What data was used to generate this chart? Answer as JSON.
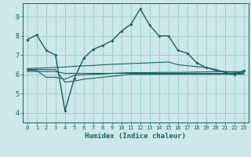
{
  "xlabel": "Humidex (Indice chaleur)",
  "xlim": [
    -0.5,
    23.5
  ],
  "ylim": [
    3.5,
    9.7
  ],
  "yticks": [
    4,
    5,
    6,
    7,
    8,
    9
  ],
  "xticks": [
    0,
    1,
    2,
    3,
    4,
    5,
    6,
    7,
    8,
    9,
    10,
    11,
    12,
    13,
    14,
    15,
    16,
    17,
    18,
    19,
    20,
    21,
    22,
    23
  ],
  "bg_color": "#cce8e8",
  "line_color": "#1a6060",
  "grid_color": "#99cccc",
  "line1_x": [
    0,
    1,
    2,
    3,
    4,
    5,
    6,
    7,
    8,
    9,
    10,
    11,
    12,
    13,
    14,
    15,
    16,
    17,
    18,
    19,
    20,
    21,
    22,
    23
  ],
  "line1_y": [
    7.8,
    8.05,
    7.25,
    7.0,
    4.1,
    5.8,
    6.85,
    7.3,
    7.5,
    7.75,
    8.25,
    8.6,
    9.4,
    8.55,
    8.0,
    8.0,
    7.25,
    7.1,
    6.6,
    6.35,
    6.25,
    6.1,
    6.0,
    6.2
  ],
  "line2_x": [
    0,
    1,
    2,
    3,
    4,
    5,
    6,
    7,
    8,
    9,
    10,
    11,
    12,
    13,
    14,
    15,
    16,
    17,
    18,
    19,
    20,
    21,
    22,
    23
  ],
  "line2_y": [
    6.3,
    6.32,
    6.34,
    6.36,
    6.38,
    6.42,
    6.44,
    6.46,
    6.5,
    6.52,
    6.54,
    6.56,
    6.58,
    6.6,
    6.62,
    6.64,
    6.5,
    6.45,
    6.4,
    6.35,
    6.2,
    6.15,
    6.1,
    6.1
  ],
  "line3_x": [
    0,
    1,
    2,
    3,
    4,
    5,
    6,
    7,
    8,
    9,
    10,
    11,
    12,
    13,
    14,
    15,
    16,
    17,
    18,
    19,
    20,
    21,
    22,
    23
  ],
  "line3_y": [
    6.15,
    6.15,
    6.15,
    6.15,
    6.05,
    6.05,
    6.05,
    6.05,
    6.05,
    6.05,
    6.05,
    6.05,
    6.05,
    6.05,
    6.05,
    6.05,
    6.05,
    6.05,
    6.05,
    6.05,
    6.05,
    6.05,
    6.05,
    6.05
  ],
  "line4_x": [
    0,
    1,
    2,
    3,
    4,
    5,
    6,
    7,
    8,
    9,
    10,
    11,
    12,
    13,
    14,
    15,
    16,
    17,
    18,
    19,
    20,
    21,
    22,
    23
  ],
  "line4_y": [
    6.2,
    6.2,
    5.85,
    5.85,
    5.75,
    5.95,
    5.98,
    6.0,
    6.02,
    6.05,
    6.07,
    6.09,
    6.09,
    6.09,
    6.1,
    6.1,
    6.1,
    6.11,
    6.12,
    6.13,
    6.14,
    6.14,
    6.14,
    6.14
  ],
  "line5_x": [
    0,
    1,
    2,
    3,
    4,
    5,
    6,
    7,
    8,
    9,
    10,
    11,
    12,
    13,
    14,
    15,
    16,
    17,
    18,
    19,
    20,
    21,
    22,
    23
  ],
  "line5_y": [
    6.25,
    6.25,
    6.25,
    6.25,
    5.6,
    5.65,
    5.75,
    5.8,
    5.85,
    5.9,
    5.95,
    6.0,
    6.0,
    6.0,
    6.0,
    6.0,
    6.0,
    6.0,
    6.0,
    6.0,
    6.0,
    6.0,
    6.0,
    6.0
  ]
}
